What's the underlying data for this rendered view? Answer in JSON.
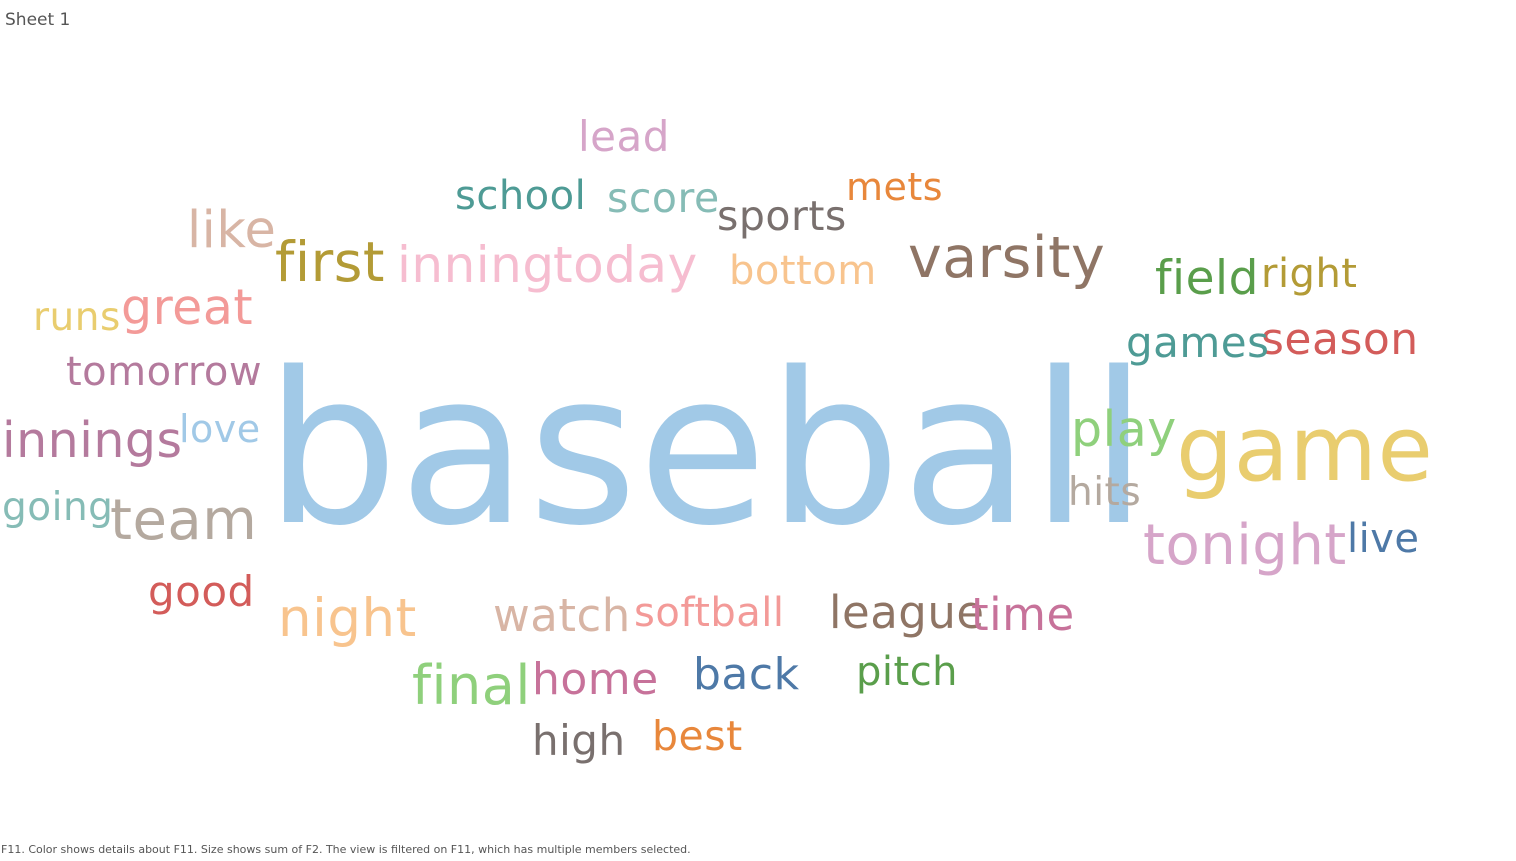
{
  "sheet": {
    "title": "Sheet 1"
  },
  "caption": "F11.  Color shows details about F11.  Size shows sum of F2. The view is filtered on F11, which has multiple members selected.",
  "chart_data": {
    "type": "word_cloud",
    "color_encoding": "F11",
    "size_encoding": "sum of F2",
    "words": [
      {
        "text": "baseball",
        "size": 100,
        "color": "#a1c9e7"
      },
      {
        "text": "game",
        "size": 46,
        "color": "#e9cd6f"
      },
      {
        "text": "varsity",
        "size": 29,
        "color": "#8f7565"
      },
      {
        "text": "tonight",
        "size": 30,
        "color": "#d6a5c9"
      },
      {
        "text": "team",
        "size": 30,
        "color": "#b4a99f"
      },
      {
        "text": "first",
        "size": 29,
        "color": "#b39b36"
      },
      {
        "text": "inning",
        "size": 27,
        "color": "#f6bdd0"
      },
      {
        "text": "today",
        "size": 27,
        "color": "#f6bdd0"
      },
      {
        "text": "night",
        "size": 29,
        "color": "#f8c48e"
      },
      {
        "text": "like",
        "size": 27,
        "color": "#d8b5a5"
      },
      {
        "text": "great",
        "size": 27,
        "color": "#f39a98"
      },
      {
        "text": "innings",
        "size": 27,
        "color": "#b47a9d"
      },
      {
        "text": "play",
        "size": 27,
        "color": "#8fd07c"
      },
      {
        "text": "final",
        "size": 29,
        "color": "#8fd07c"
      },
      {
        "text": "watch",
        "size": 25,
        "color": "#d8b5a5"
      },
      {
        "text": "season",
        "size": 25,
        "color": "#d35c5a"
      },
      {
        "text": "field",
        "size": 25,
        "color": "#5a9e4b"
      },
      {
        "text": "league",
        "size": 25,
        "color": "#8f7565"
      },
      {
        "text": "time",
        "size": 25,
        "color": "#c7729a"
      },
      {
        "text": "home",
        "size": 25,
        "color": "#c7729a"
      },
      {
        "text": "back",
        "size": 24,
        "color": "#4e79a7"
      },
      {
        "text": "lead",
        "size": 24,
        "color": "#d6a5c9"
      },
      {
        "text": "good",
        "size": 24,
        "color": "#d35c5a"
      },
      {
        "text": "games",
        "size": 23,
        "color": "#4e9b95"
      },
      {
        "text": "high",
        "size": 23,
        "color": "#79706e"
      },
      {
        "text": "live",
        "size": 23,
        "color": "#4e79a7"
      },
      {
        "text": "best",
        "size": 23,
        "color": "#e8873b"
      },
      {
        "text": "school",
        "size": 22,
        "color": "#4e9b95"
      },
      {
        "text": "score",
        "size": 22,
        "color": "#86bcb6"
      },
      {
        "text": "softball",
        "size": 22,
        "color": "#f39a98"
      },
      {
        "text": "pitch",
        "size": 22,
        "color": "#5a9e4b"
      },
      {
        "text": "right",
        "size": 22,
        "color": "#b39b36"
      },
      {
        "text": "sports",
        "size": 22,
        "color": "#79706e"
      },
      {
        "text": "bottom",
        "size": 22,
        "color": "#f8c48e"
      },
      {
        "text": "tomorrow",
        "size": 22,
        "color": "#b47a9d"
      },
      {
        "text": "love",
        "size": 22,
        "color": "#a1c9e7"
      },
      {
        "text": "going",
        "size": 22,
        "color": "#86bcb6"
      },
      {
        "text": "hits",
        "size": 22,
        "color": "#b4a99f"
      },
      {
        "text": "runs",
        "size": 22,
        "color": "#e9cd6f"
      },
      {
        "text": "mets",
        "size": 21,
        "color": "#e8873b"
      }
    ]
  }
}
